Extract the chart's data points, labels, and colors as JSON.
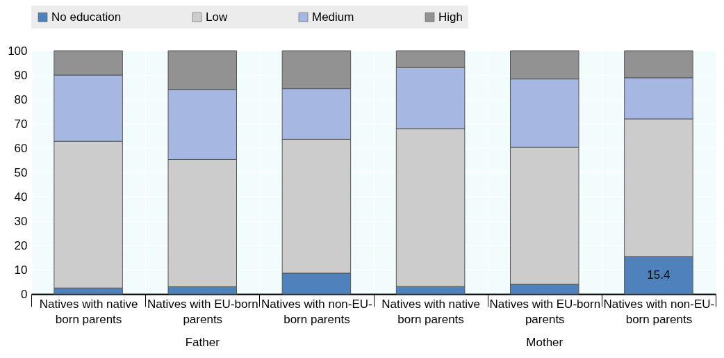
{
  "chart_data": {
    "type": "bar",
    "stacked": true,
    "categories": [
      "Natives with native born parents",
      "Natives with EU-born parents",
      "Natives with non-EU-born parents",
      "Natives with native born parents",
      "Natives with EU-born parents",
      "Natives with non-EU-born parents"
    ],
    "series": [
      {
        "name": "No education",
        "color": "#4f81bd",
        "values": [
          2.5,
          3.0,
          8.6,
          3.1,
          4.0,
          15.4
        ],
        "value_labels": [
          null,
          null,
          null,
          null,
          null,
          "15.4"
        ]
      },
      {
        "name": "Low",
        "color": "#cccccc",
        "values": [
          60.3,
          52.3,
          55.0,
          64.9,
          56.3,
          56.6
        ]
      },
      {
        "name": "Medium",
        "color": "#a6b8e2",
        "values": [
          27.2,
          28.8,
          20.8,
          25.1,
          28.1,
          16.9
        ]
      },
      {
        "name": "High",
        "color": "#929292",
        "values": [
          10.0,
          15.9,
          15.6,
          6.9,
          11.6,
          11.1
        ]
      }
    ],
    "annotations": [
      "Father",
      "Mother"
    ],
    "ylim": [
      0,
      100
    ],
    "yticks": [
      0,
      10,
      20,
      30,
      40,
      50,
      60,
      70,
      80,
      90,
      100
    ],
    "grid": true,
    "legend": "top"
  }
}
